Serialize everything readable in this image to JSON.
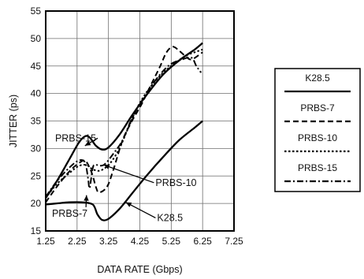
{
  "chart_data": {
    "type": "line",
    "xlabel": "DATA RATE (Gbps)",
    "ylabel": "JITTER (ps)",
    "xlim": [
      1.25,
      7.25
    ],
    "ylim": [
      15,
      55
    ],
    "xticks": [
      "1.25",
      "2.25",
      "3.25",
      "4.25",
      "5.25",
      "6.25",
      "7.25"
    ],
    "yticks": [
      "15",
      "20",
      "25",
      "30",
      "35",
      "40",
      "45",
      "50",
      "55"
    ],
    "grid": true,
    "legend_position": "right",
    "series": [
      {
        "name": "K28.5",
        "color": "#000000",
        "dash": "solid",
        "points": [
          [
            1.25,
            19.8
          ],
          [
            1.6,
            20.0
          ],
          [
            2.0,
            20.2
          ],
          [
            2.4,
            20.2
          ],
          [
            2.75,
            19.8
          ],
          [
            2.9,
            18.0
          ],
          [
            3.05,
            17.0
          ],
          [
            3.25,
            17.2
          ],
          [
            3.6,
            19.0
          ],
          [
            4.0,
            21.8
          ],
          [
            4.5,
            25.3
          ],
          [
            5.0,
            28.5
          ],
          [
            5.5,
            31.5
          ],
          [
            6.0,
            33.8
          ],
          [
            6.25,
            35.0
          ]
        ]
      },
      {
        "name": "PRBS-7",
        "color": "#000000",
        "dash": "dashed",
        "points": [
          [
            1.25,
            20.2
          ],
          [
            1.6,
            23.0
          ],
          [
            2.0,
            25.8
          ],
          [
            2.3,
            27.3
          ],
          [
            2.5,
            27.8
          ],
          [
            2.65,
            26.5
          ],
          [
            2.75,
            25.0
          ],
          [
            2.85,
            23.0
          ],
          [
            2.95,
            22.0
          ],
          [
            3.2,
            23.0
          ],
          [
            3.4,
            26.0
          ],
          [
            3.7,
            31.5
          ],
          [
            4.0,
            35.0
          ],
          [
            4.3,
            38.0
          ],
          [
            4.6,
            41.5
          ],
          [
            4.9,
            45.0
          ],
          [
            5.1,
            47.5
          ],
          [
            5.3,
            48.5
          ],
          [
            5.5,
            47.8
          ],
          [
            5.7,
            46.8
          ],
          [
            5.9,
            46.2
          ],
          [
            6.25,
            47.5
          ]
        ]
      },
      {
        "name": "PRBS-10",
        "color": "#000000",
        "dash": "dotted",
        "points": [
          [
            1.25,
            21.0
          ],
          [
            1.6,
            23.5
          ],
          [
            2.0,
            25.5
          ],
          [
            2.3,
            26.8
          ],
          [
            2.55,
            27.0
          ],
          [
            2.75,
            26.2
          ],
          [
            3.0,
            26.0
          ],
          [
            3.3,
            27.3
          ],
          [
            3.6,
            30.0
          ],
          [
            3.9,
            34.0
          ],
          [
            4.25,
            38.3
          ],
          [
            4.7,
            42.0
          ],
          [
            5.2,
            44.8
          ],
          [
            5.7,
            46.8
          ],
          [
            6.0,
            47.5
          ],
          [
            6.25,
            48.0
          ]
        ]
      },
      {
        "name": "PRBS-15",
        "color": "#000000",
        "dash": "dashdot",
        "points": [
          [
            1.25,
            21.2
          ],
          [
            1.6,
            24.0
          ],
          [
            2.0,
            26.5
          ],
          [
            2.3,
            27.8
          ],
          [
            2.5,
            27.5
          ],
          [
            2.6,
            24.5
          ],
          [
            2.65,
            22.8
          ],
          [
            2.75,
            26.5
          ],
          [
            2.85,
            27.0
          ],
          [
            3.1,
            27.0
          ],
          [
            3.4,
            29.0
          ],
          [
            3.7,
            31.5
          ],
          [
            4.0,
            35.5
          ],
          [
            4.4,
            39.5
          ],
          [
            4.8,
            42.8
          ],
          [
            5.2,
            45.2
          ],
          [
            5.6,
            46.2
          ],
          [
            5.9,
            46.5
          ],
          [
            6.05,
            45.0
          ],
          [
            6.2,
            43.8
          ]
        ]
      },
      {
        "name": "",
        "color": "#000000",
        "dash": "solid",
        "points": [
          [
            1.25,
            21.0
          ],
          [
            1.6,
            24.0
          ],
          [
            2.0,
            28.0
          ],
          [
            2.3,
            31.0
          ],
          [
            2.5,
            32.2
          ],
          [
            2.65,
            32.0
          ],
          [
            2.85,
            30.5
          ],
          [
            3.05,
            29.8
          ],
          [
            3.25,
            30.2
          ],
          [
            3.6,
            32.5
          ],
          [
            4.0,
            36.0
          ],
          [
            4.5,
            40.0
          ],
          [
            5.0,
            43.5
          ],
          [
            5.5,
            46.0
          ],
          [
            6.0,
            48.0
          ],
          [
            6.25,
            49.2
          ]
        ]
      }
    ],
    "annotations": [
      {
        "text": "PRBS-15",
        "label_at": [
          1.55,
          31.3
        ],
        "arrow_to": [
          2.5,
          30.5
        ]
      },
      {
        "text": "PRBS-10",
        "label_at": [
          4.75,
          23.2
        ],
        "arrow_to": [
          3.1,
          27.0
        ]
      },
      {
        "text": "PRBS-7",
        "label_at": [
          1.45,
          17.6
        ],
        "arrow_to": [
          2.55,
          21.5
        ]
      },
      {
        "text": "K28.5",
        "label_at": [
          4.8,
          16.8
        ],
        "arrow_to": [
          3.8,
          20.2
        ]
      }
    ]
  }
}
